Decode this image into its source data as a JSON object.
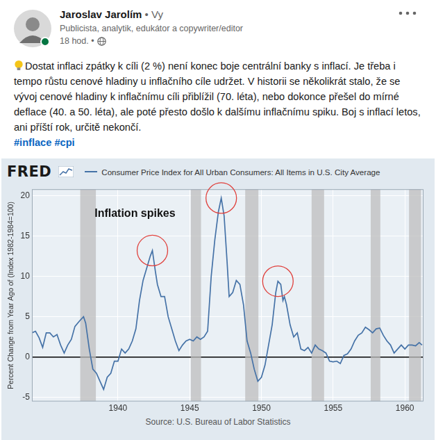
{
  "post": {
    "author": "Jaroslav Jarolím",
    "badge": "• Vy",
    "headline": "Publicista, analytik, edukátor a copywriter/editor",
    "time": "18 hod. •",
    "text": "Dostat inflaci zpátky k cíli (2 %) není konec boje centrální banky s inflací. Je třeba i tempo růstu cenové hladiny u inflačního cíle udržet. V historii se několikrát stalo, že se vývoj cenové hladiny k inflačnímu cíli přiblížil (70. léta), nebo dokonce přešel do mírné deflace (40. a 50. léta), ale poté přesto došlo k dalšímu inflačnímu spiku. Boj s inflací letos, ani příští rok, určitě nekončí.",
    "hashtags": [
      "#inflace",
      "#cpi"
    ]
  },
  "chart_data": {
    "type": "line",
    "logo": "FRED",
    "source": "Source: U.S. Bureau of Labor Statistics",
    "y_label": "Percent Change from Year Ago of (Index 1982-1984=100)",
    "annotation": {
      "text": "Inflation spikes",
      "x": [
        1942.4,
        1947.2,
        1951.15
      ]
    },
    "x": [
      1934.0,
      1934.25,
      1934.5,
      1934.75,
      1935.0,
      1935.25,
      1935.5,
      1935.75,
      1936.0,
      1936.25,
      1936.5,
      1936.75,
      1937.0,
      1937.33,
      1937.6,
      1937.75,
      1938.0,
      1938.25,
      1938.5,
      1938.75,
      1939.0,
      1939.25,
      1939.5,
      1939.75,
      1940.0,
      1940.25,
      1940.5,
      1940.75,
      1941.0,
      1941.25,
      1941.5,
      1941.75,
      1942.0,
      1942.25,
      1942.4,
      1942.6,
      1942.75,
      1943.0,
      1943.25,
      1943.5,
      1943.75,
      1944.0,
      1944.25,
      1944.5,
      1944.75,
      1945.0,
      1945.25,
      1945.5,
      1945.75,
      1946.0,
      1946.25,
      1946.5,
      1946.75,
      1947.0,
      1947.2,
      1947.4,
      1947.6,
      1947.75,
      1948.0,
      1948.25,
      1948.5,
      1948.75,
      1949.0,
      1949.25,
      1949.5,
      1949.75,
      1950.0,
      1950.25,
      1950.5,
      1950.75,
      1951.0,
      1951.15,
      1951.35,
      1951.5,
      1951.6,
      1951.75,
      1952.0,
      1952.25,
      1952.5,
      1952.75,
      1953.0,
      1953.25,
      1953.5,
      1953.75,
      1954.0,
      1954.25,
      1954.5,
      1954.75,
      1955.0,
      1955.25,
      1955.5,
      1955.75,
      1956.0,
      1956.25,
      1956.5,
      1956.75,
      1957.0,
      1957.25,
      1957.5,
      1957.75,
      1958.0,
      1958.25,
      1958.5,
      1958.75,
      1959.0,
      1959.25,
      1959.5,
      1959.75,
      1960.0,
      1960.25,
      1960.5,
      1960.75,
      1961.0,
      1961.2
    ],
    "series": [
      {
        "name": "Consumer Price Index for All Urban Consumers: All Items in U.S. City Average",
        "color": "#4572a7",
        "values": [
          3.0,
          3.2,
          2.4,
          1.2,
          3.0,
          3.0,
          2.5,
          2.8,
          1.5,
          0.5,
          1.5,
          2.2,
          3.8,
          4.5,
          5.0,
          4.2,
          1.0,
          -1.5,
          -2.0,
          -3.0,
          -4.0,
          -2.5,
          -2.0,
          -0.5,
          -0.5,
          1.0,
          0.5,
          1.0,
          2.0,
          3.5,
          7.0,
          9.5,
          11.0,
          12.5,
          13.2,
          10.7,
          9.0,
          7.5,
          7.5,
          5.0,
          3.5,
          2.0,
          0.8,
          1.5,
          2.0,
          2.2,
          2.0,
          2.5,
          2.2,
          2.5,
          3.2,
          10.0,
          14.5,
          18.0,
          19.7,
          17.5,
          12.0,
          7.5,
          8.0,
          9.5,
          9.0,
          6.5,
          2.0,
          0.5,
          -1.5,
          -3.0,
          -2.5,
          -1.0,
          1.5,
          4.0,
          8.0,
          9.4,
          9.0,
          7.0,
          7.5,
          6.5,
          4.0,
          2.5,
          3.0,
          1.0,
          0.8,
          1.2,
          0.5,
          1.5,
          1.0,
          0.8,
          0.5,
          -0.5,
          -0.6,
          -0.5,
          -0.8,
          0.2,
          0.4,
          1.0,
          2.0,
          2.7,
          3.0,
          3.7,
          3.4,
          3.0,
          3.5,
          3.6,
          2.7,
          2.0,
          1.5,
          0.5,
          1.0,
          1.5,
          1.0,
          1.5,
          1.5,
          1.4,
          1.8,
          1.5
        ]
      }
    ],
    "recessions": [
      [
        1937.37,
        1938.46
      ],
      [
        1945.08,
        1945.79
      ],
      [
        1948.87,
        1949.79
      ],
      [
        1953.5,
        1954.37
      ],
      [
        1957.62,
        1958.29
      ],
      [
        1960.29,
        1961.13
      ]
    ],
    "xlim": [
      1934.0,
      1961.3
    ],
    "ylim": [
      -5.5,
      20.8
    ],
    "xticks": [
      1940,
      1945,
      1950,
      1955,
      1960
    ],
    "yticks": [
      -5,
      0,
      5,
      10,
      15,
      20
    ],
    "grid": true,
    "legend": "top"
  }
}
